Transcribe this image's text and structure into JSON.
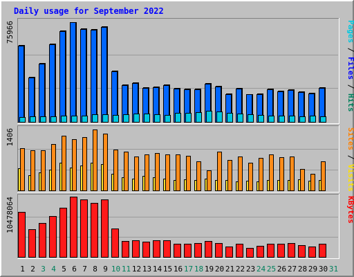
{
  "chart_data": {
    "type": "bar",
    "title": "Daily usage for September 2022",
    "days": [
      "1",
      "2",
      "3",
      "4",
      "5",
      "6",
      "7",
      "8",
      "9",
      "10",
      "11",
      "12",
      "13",
      "14",
      "15",
      "16",
      "17",
      "18",
      "19",
      "20",
      "21",
      "22",
      "23",
      "24",
      "25",
      "26",
      "27",
      "28",
      "29",
      "30",
      "31"
    ],
    "weekend_days": [
      "3",
      "4",
      "10",
      "11",
      "17",
      "18",
      "24",
      "25",
      "31"
    ],
    "panels": [
      {
        "id": "hits-files-pages",
        "max_label": "75966",
        "ymax": 75966,
        "right_label": [
          {
            "text": "Pages",
            "color": "#00c8e0"
          },
          {
            "text": " / ",
            "color": "#000000"
          },
          {
            "text": "Files",
            "color": "#0000ff"
          },
          {
            "text": " / ",
            "color": "#000000"
          },
          {
            "text": "Hits",
            "color": "#00805c"
          }
        ],
        "series": [
          {
            "name": "Hits",
            "color": "#00805c",
            "values": [
              57500,
              33700,
              44400,
              59000,
              68700,
              75100,
              70500,
              69900,
              72000,
              38500,
              28300,
              29400,
              25900,
              26600,
              27900,
              25300,
              25000,
              25100,
              29100,
              26900,
              21300,
              25400,
              21000,
              21200,
              24900,
              23500,
              24300,
              22800,
              21800,
              26000,
              0
            ]
          },
          {
            "name": "Files",
            "color": "#0066ff",
            "values": [
              57000,
              33200,
              43900,
              58500,
              68200,
              74800,
              69900,
              69300,
              71500,
              38000,
              27800,
              28900,
              25400,
              26000,
              27400,
              24800,
              24500,
              24600,
              28600,
              26300,
              20900,
              24900,
              20600,
              20700,
              24400,
              23100,
              23800,
              22300,
              21300,
              25500,
              0
            ]
          },
          {
            "name": "Pages",
            "color": "#00c8e0",
            "values": [
              3800,
              4200,
              4300,
              4200,
              4700,
              4600,
              4800,
              5700,
              5800,
              5400,
              5600,
              6400,
              6300,
              5500,
              5300,
              6600,
              6900,
              7500,
              8400,
              7600,
              7000,
              6400,
              5500,
              5000,
              4900,
              4600,
              4500,
              4200,
              4800,
              4400,
              0
            ]
          }
        ]
      },
      {
        "id": "visits-sites",
        "max_label": "1406",
        "ymax": 1406,
        "right_label": [
          {
            "text": "Sites",
            "color": "#ff8000"
          },
          {
            "text": " / ",
            "color": "#000000"
          },
          {
            "text": "Visits",
            "color": "#ffe000"
          }
        ],
        "series": [
          {
            "name": "Visits",
            "color": "#f8e030",
            "values": [
              500,
              340,
              400,
              470,
              620,
              520,
              560,
              630,
              600,
              380,
              290,
              260,
              330,
              290,
              260,
              230,
              250,
              230,
              260,
              240,
              240,
              210,
              220,
              210,
              230,
              240,
              240,
              250,
              220,
              230,
              0
            ]
          },
          {
            "name": "Sites",
            "color": "#ff8c1a",
            "values": [
              960,
              900,
              910,
              1040,
              1230,
              1160,
              1200,
              1380,
              1280,
              920,
              870,
              770,
              820,
              850,
              810,
              810,
              780,
              650,
              460,
              880,
              690,
              760,
              630,
              740,
              820,
              750,
              770,
              490,
              370,
              650,
              0
            ]
          }
        ]
      },
      {
        "id": "kbytes",
        "max_label": "10478064",
        "ymax": 10478064,
        "right_label": [
          {
            "text": "KBytes",
            "color": "#ff0000"
          }
        ],
        "series": [
          {
            "name": "KBytes",
            "color": "#ff1a1a",
            "values": [
              7850000,
              4850000,
              5900000,
              7150000,
              8600000,
              10478000,
              9950000,
              9400000,
              9950000,
              4900000,
              2800000,
              2950000,
              2600000,
              2950000,
              2900000,
              2250000,
              2300000,
              2350000,
              2750000,
              2450000,
              1850000,
              2300000,
              1550000,
              1950000,
              2250000,
              2250000,
              2350000,
              2050000,
              1850000,
              2300000,
              0
            ]
          }
        ]
      }
    ]
  }
}
